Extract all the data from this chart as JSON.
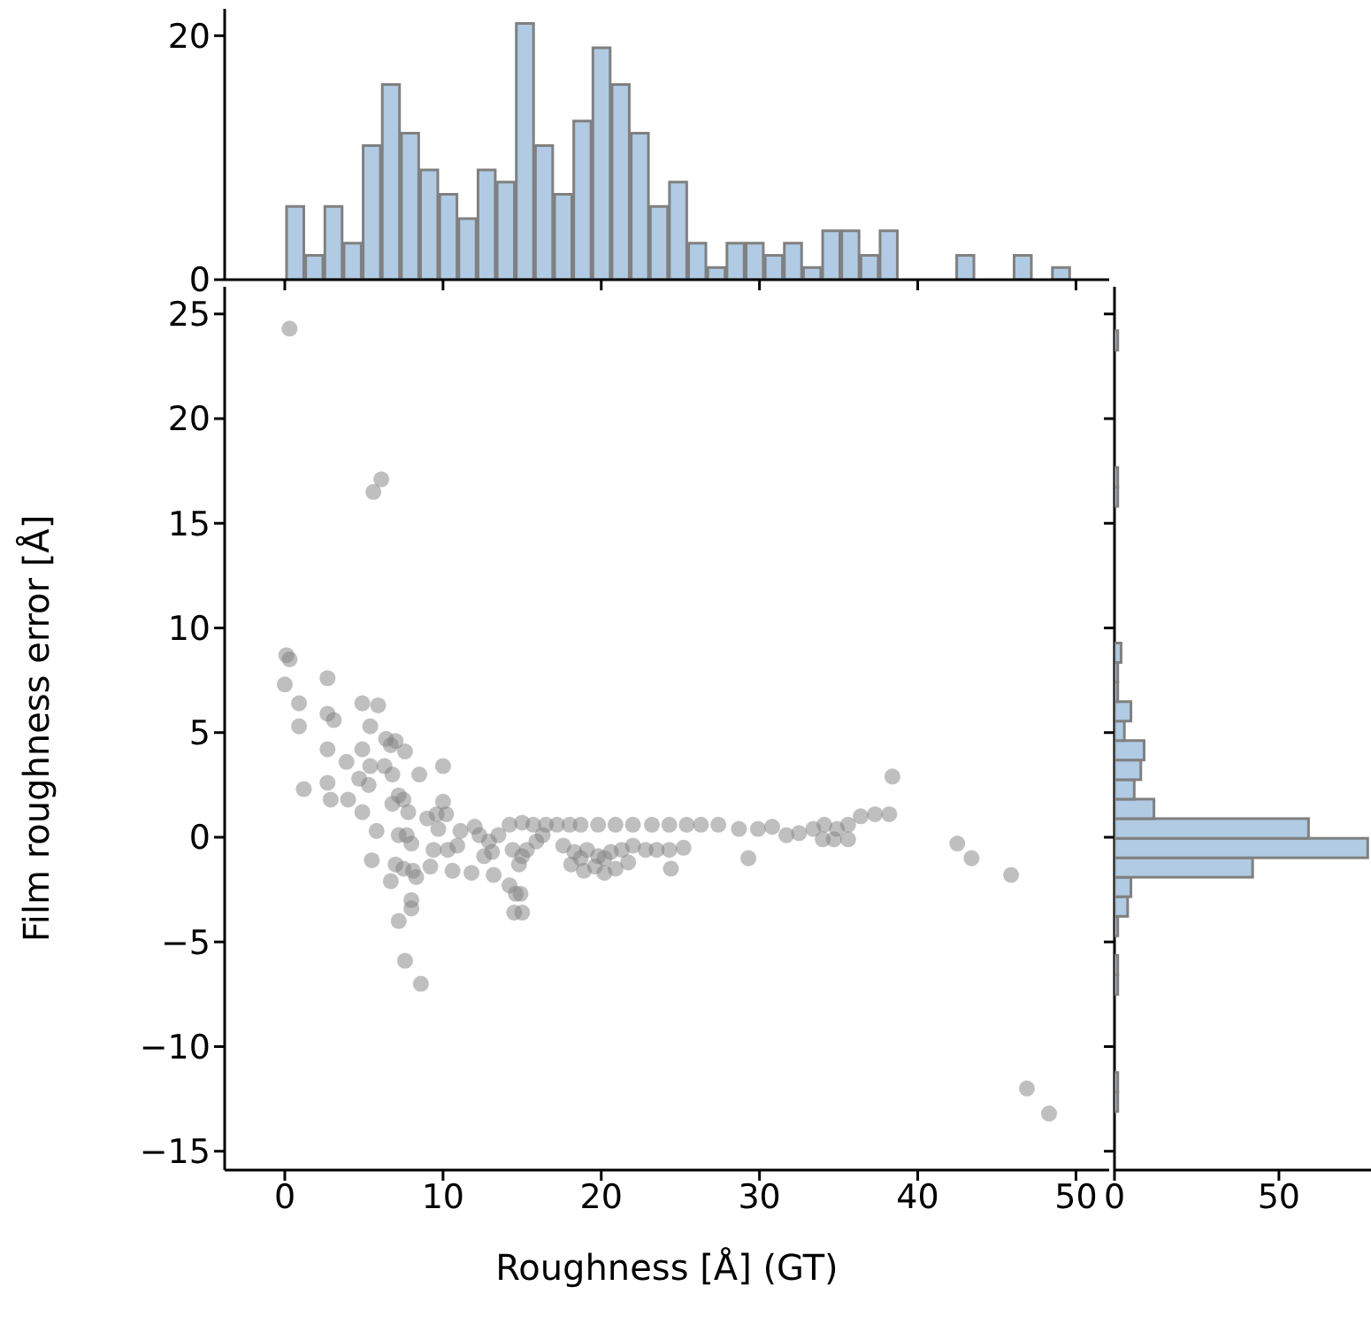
{
  "chart_data": [
    {
      "type": "histogram",
      "color": "#b0cbe3",
      "bins": [
        0,
        1.21,
        2.42,
        3.63,
        4.84,
        6.05,
        7.26,
        8.47,
        9.68,
        10.89,
        12.1,
        13.31,
        14.52,
        15.73,
        16.94,
        18.15,
        19.36,
        20.57,
        21.78,
        22.99,
        24.2,
        25.41,
        26.62,
        27.83,
        29.04,
        30.25,
        31.46,
        32.67,
        33.88,
        35.09,
        36.3,
        37.51,
        38.72,
        39.93,
        41.14,
        42.35,
        43.56,
        44.77,
        45.98,
        47.19,
        48.4,
        49.61
      ],
      "values": [
        6,
        2,
        6,
        3,
        11,
        16,
        12,
        9,
        7,
        5,
        9,
        8,
        21,
        11,
        7,
        13,
        19,
        16,
        12,
        6,
        8,
        3,
        1,
        3,
        3,
        2,
        3,
        1,
        4,
        4,
        2,
        4,
        0,
        0,
        0,
        2,
        0,
        0,
        2,
        0,
        1
      ],
      "xlim": [
        -3.8,
        52.1
      ],
      "xticks": [
        0,
        10,
        20,
        30,
        40,
        50
      ],
      "ylim": [
        0,
        22.2
      ],
      "yticks": [
        0,
        20
      ],
      "tick_labels": "y"
    },
    {
      "type": "scatter",
      "xlabel": "Roughness [Å] (GT)",
      "ylabel": "Film roughness error [Å]",
      "color": "#808080",
      "marker": "circle",
      "x": [
        0.3,
        6.1,
        5.6,
        0.1,
        0.3,
        2.7,
        0.0,
        0.9,
        4.9,
        5.9,
        2.7,
        3.1,
        0.9,
        5.4,
        6.4,
        7.0,
        6.7,
        2.7,
        3.9,
        4.9,
        5.4,
        4.7,
        5.3,
        6.3,
        6.8,
        7.6,
        8.5,
        10.0,
        1.2,
        2.7,
        2.9,
        4.0,
        4.9,
        7.2,
        7.5,
        6.8,
        7.8,
        10.0,
        9.0,
        9.6,
        10.2,
        5.8,
        7.2,
        7.7,
        8.0,
        9.7,
        5.5,
        7.0,
        7.5,
        8.1,
        6.7,
        8.3,
        9.2,
        9.4,
        10.3,
        10.9,
        10.6,
        11.8,
        8.0,
        8.0,
        7.2,
        7.6,
        8.6,
        11.1,
        12.0,
        12.3,
        12.9,
        12.6,
        13.1,
        13.2,
        14.2,
        14.6,
        14.9,
        14.5,
        15.0,
        13.5,
        14.2,
        15.0,
        15.7,
        16.5,
        14.4,
        15.0,
        15.3,
        15.9,
        16.3,
        14.8,
        17.2,
        18.0,
        18.7,
        19.8,
        20.9,
        22.0,
        23.2,
        24.3,
        25.4,
        26.3,
        27.4,
        28.7,
        29.9,
        30.8,
        31.7,
        32.5,
        33.4,
        34.1,
        34.9,
        35.6,
        36.4,
        37.3,
        38.2,
        34.0,
        34.7,
        35.6,
        38.4,
        29.3,
        24.4,
        17.6,
        18.3,
        19.1,
        19.8,
        20.6,
        21.3,
        22.0,
        22.8,
        23.5,
        24.3,
        25.2,
        18.1,
        18.9,
        19.6,
        20.2,
        20.9,
        21.7,
        18.7,
        20.2,
        42.5,
        43.4,
        45.9,
        46.9,
        48.3
      ],
      "values": [
        24.3,
        17.1,
        16.5,
        8.7,
        8.5,
        7.6,
        7.3,
        6.4,
        6.4,
        6.3,
        5.9,
        5.6,
        5.3,
        5.3,
        4.7,
        4.6,
        4.4,
        4.2,
        3.6,
        4.2,
        3.4,
        2.8,
        2.5,
        3.4,
        3.0,
        4.1,
        3.0,
        3.4,
        2.3,
        2.6,
        1.8,
        1.8,
        1.2,
        2.0,
        1.8,
        1.6,
        1.2,
        1.7,
        0.9,
        1.1,
        1.1,
        0.3,
        0.1,
        0.1,
        -0.3,
        0.4,
        -1.1,
        -1.3,
        -1.5,
        -1.6,
        -2.1,
        -1.9,
        -1.4,
        -0.6,
        -0.6,
        -0.4,
        -1.6,
        -1.7,
        -3.0,
        -3.4,
        -4.0,
        -5.9,
        -7.0,
        0.3,
        0.5,
        0.1,
        -0.2,
        -0.9,
        -0.7,
        -1.8,
        -2.3,
        -2.7,
        -2.7,
        -3.6,
        -3.6,
        0.1,
        0.6,
        0.7,
        0.6,
        0.6,
        -0.6,
        -0.9,
        -0.6,
        -0.2,
        0.1,
        -1.3,
        0.6,
        0.6,
        0.6,
        0.6,
        0.6,
        0.6,
        0.6,
        0.6,
        0.6,
        0.6,
        0.6,
        0.4,
        0.4,
        0.5,
        0.1,
        0.2,
        0.4,
        0.6,
        0.4,
        0.6,
        1.0,
        1.1,
        1.1,
        -0.1,
        -0.1,
        -0.1,
        2.9,
        -1.0,
        -1.5,
        -0.4,
        -0.7,
        -0.6,
        -0.9,
        -0.7,
        -0.6,
        -0.4,
        -0.6,
        -0.6,
        -0.6,
        -0.5,
        -1.3,
        -1.6,
        -1.4,
        -1.7,
        -1.5,
        -1.2,
        -1.0,
        -1.0,
        -0.3,
        -1.0,
        -1.8,
        -12.0,
        -13.2
      ],
      "xlim": [
        -3.8,
        52.1
      ],
      "xticks": [
        0,
        10,
        20,
        30,
        40,
        50
      ],
      "ylim": [
        -15.9,
        26.3
      ],
      "yticks": [
        -15,
        -10,
        -5,
        0,
        5,
        10,
        15,
        20,
        25
      ]
    },
    {
      "type": "histogram",
      "orientation": "horizontal",
      "color": "#b0cbe3",
      "bins": [
        -13.1,
        -12.17,
        -11.24,
        -10.3,
        -9.37,
        -8.44,
        -7.51,
        -6.57,
        -5.64,
        -4.71,
        -3.78,
        -2.84,
        -1.91,
        -0.98,
        -0.05,
        0.89,
        1.82,
        2.75,
        3.69,
        4.62,
        5.55,
        6.48,
        7.42,
        8.35,
        9.28,
        10.21,
        11.15,
        12.08,
        13.01,
        13.94,
        14.88,
        15.81,
        16.74,
        17.67,
        18.61,
        19.54,
        20.47,
        21.4,
        22.34,
        23.27,
        24.2
      ],
      "values": [
        1,
        1,
        0,
        0,
        0,
        0,
        1,
        1,
        0,
        1,
        4,
        5,
        42,
        77,
        59,
        12,
        6,
        8,
        9,
        3,
        5,
        1,
        1,
        2,
        0,
        0,
        0,
        0,
        0,
        0,
        0,
        1,
        1,
        0,
        0,
        0,
        0,
        0,
        0,
        1
      ],
      "xlim": [
        0,
        78
      ],
      "xticks": [
        0,
        50
      ],
      "ylim": [
        -15.9,
        26.3
      ],
      "yticks": [
        -15,
        -10,
        -5,
        0,
        5,
        10,
        15,
        20,
        25
      ],
      "tick_labels": "x"
    }
  ]
}
